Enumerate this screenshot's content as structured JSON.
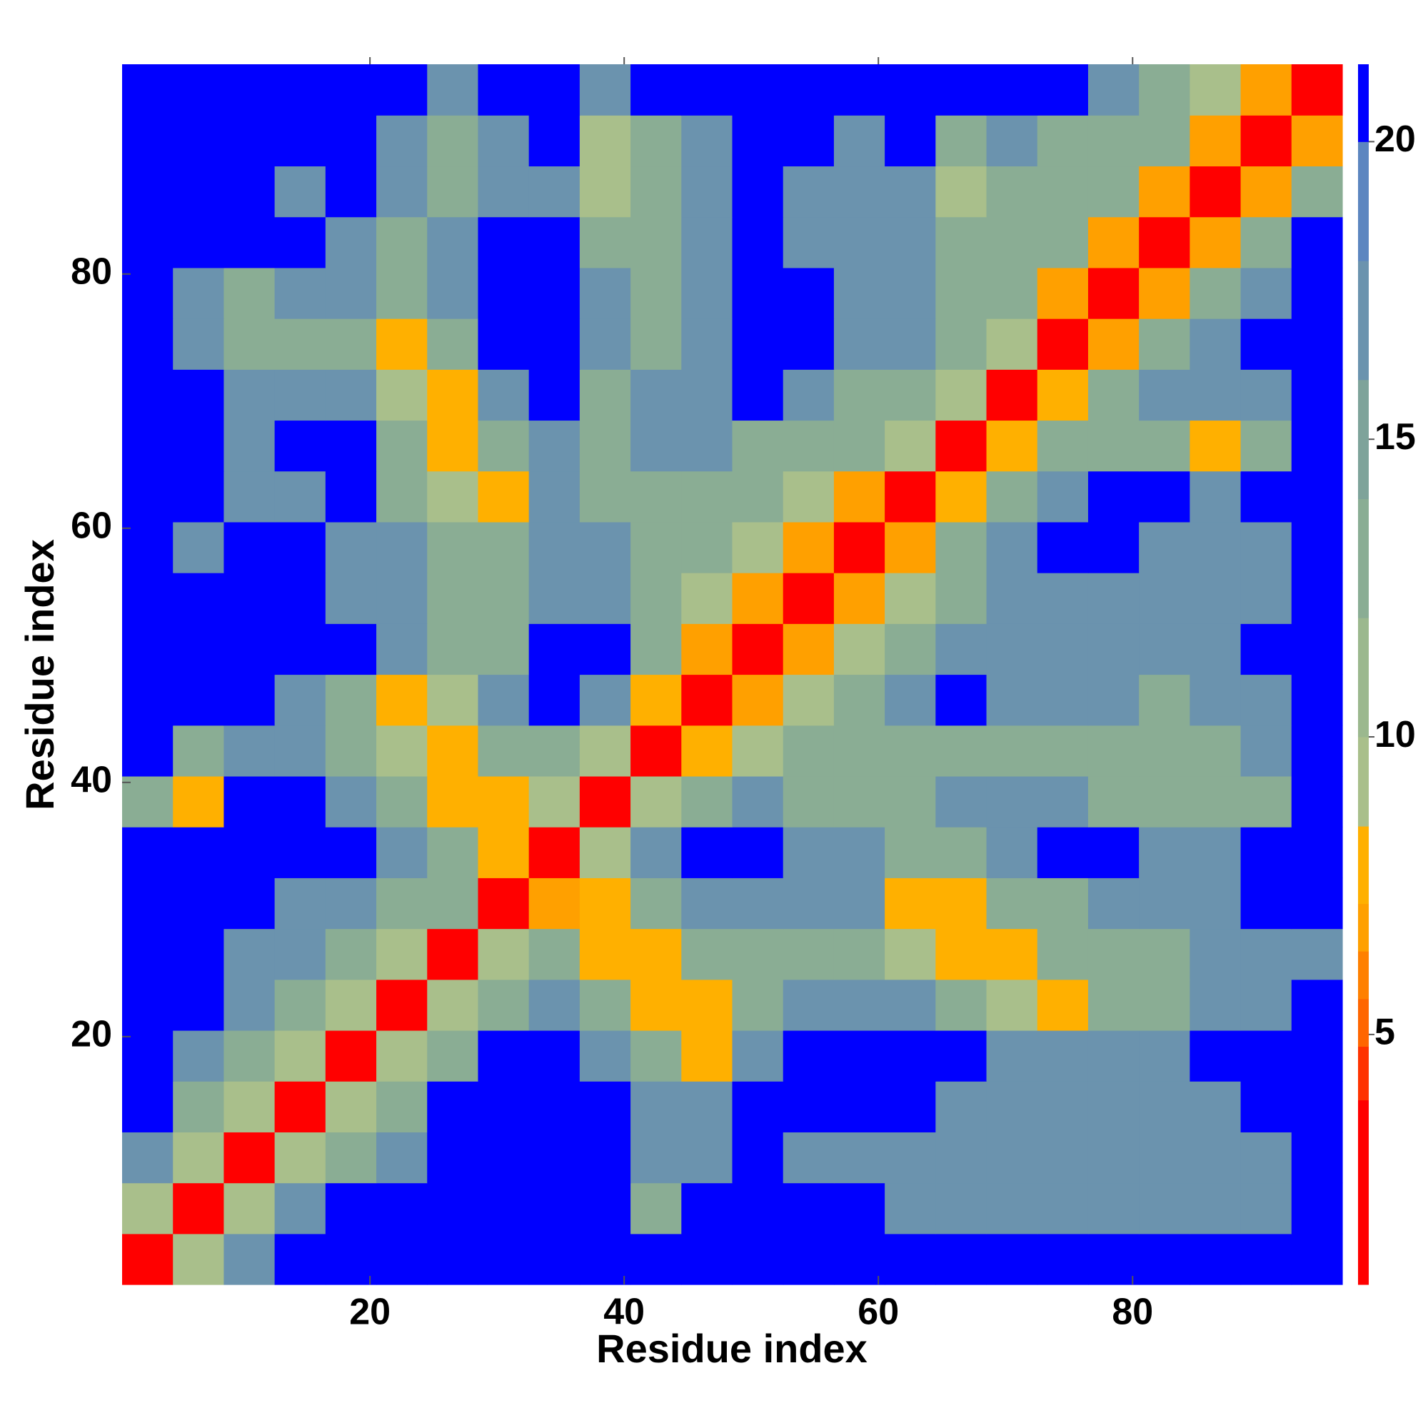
{
  "chart_data": {
    "type": "heatmap",
    "xlabel": "Residue index",
    "ylabel": "Residue index",
    "xbins": [
      0.5,
      4.5,
      8.5,
      12.5,
      16.5,
      20.5,
      24.5,
      28.5,
      32.5,
      36.5,
      40.5,
      44.5,
      48.5,
      52.5,
      56.5,
      60.5,
      64.5,
      68.5,
      72.5,
      76.5,
      80.5,
      84.5,
      88.5,
      92.5,
      96.5
    ],
    "ybins": [
      0.5,
      4.5,
      8.5,
      12.5,
      16.5,
      20.5,
      24.5,
      28.5,
      32.5,
      36.5,
      40.5,
      44.5,
      48.5,
      52.5,
      56.5,
      60.5,
      64.5,
      68.5,
      72.5,
      76.5,
      80.5,
      84.5,
      88.5,
      92.5,
      96.5
    ],
    "xlim": [
      0.5,
      96.5
    ],
    "ylim": [
      0.5,
      96.5
    ],
    "xticks": [
      20,
      40,
      60,
      80
    ],
    "yticks": [
      20,
      40,
      60,
      80
    ],
    "values": [
      [
        3,
        10,
        17,
        21,
        21,
        21,
        21,
        21,
        21,
        21,
        21,
        21,
        21,
        21,
        21,
        21,
        21,
        21,
        21,
        21,
        21,
        21,
        21,
        21
      ],
      [
        10,
        3,
        10,
        17,
        21,
        21,
        21,
        21,
        21,
        21,
        14,
        21,
        21,
        21,
        21,
        17,
        17,
        17,
        17,
        17,
        17,
        17,
        17,
        21
      ],
      [
        17,
        10,
        3,
        10,
        14,
        17,
        21,
        21,
        21,
        21,
        17,
        17,
        21,
        17,
        17,
        17,
        17,
        17,
        17,
        17,
        17,
        17,
        17,
        21
      ],
      [
        21,
        14,
        10,
        3,
        10,
        14,
        21,
        21,
        21,
        21,
        17,
        17,
        21,
        21,
        21,
        21,
        17,
        17,
        17,
        17,
        17,
        17,
        21,
        21
      ],
      [
        21,
        17,
        14,
        10,
        3,
        10,
        14,
        21,
        21,
        17,
        14,
        8,
        17,
        21,
        21,
        21,
        21,
        17,
        17,
        17,
        17,
        21,
        21,
        21
      ],
      [
        21,
        21,
        17,
        14,
        10,
        3,
        10,
        14,
        17,
        14,
        8,
        8,
        14,
        17,
        17,
        17,
        14,
        10,
        8,
        14,
        14,
        17,
        17,
        21
      ],
      [
        21,
        21,
        17,
        17,
        14,
        10,
        3,
        10,
        14,
        8,
        8,
        14,
        14,
        14,
        14,
        10,
        8,
        8,
        14,
        14,
        14,
        17,
        17,
        17
      ],
      [
        21,
        21,
        21,
        17,
        17,
        14,
        14,
        3,
        7,
        8,
        14,
        17,
        17,
        17,
        17,
        8,
        8,
        14,
        14,
        17,
        17,
        17,
        21,
        21
      ],
      [
        21,
        21,
        21,
        21,
        21,
        17,
        14,
        8,
        3,
        10,
        17,
        21,
        21,
        17,
        17,
        14,
        14,
        17,
        21,
        21,
        17,
        17,
        21,
        21
      ],
      [
        14,
        8,
        21,
        21,
        17,
        14,
        8,
        8,
        10,
        3,
        10,
        14,
        17,
        14,
        14,
        14,
        17,
        17,
        17,
        14,
        14,
        14,
        14,
        21
      ],
      [
        21,
        14,
        17,
        17,
        14,
        10,
        8,
        14,
        14,
        10,
        3,
        8,
        10,
        14,
        14,
        14,
        14,
        14,
        14,
        14,
        14,
        14,
        17,
        21
      ],
      [
        21,
        21,
        21,
        17,
        14,
        8,
        10,
        17,
        21,
        17,
        8,
        3,
        7,
        10,
        14,
        17,
        21,
        17,
        17,
        17,
        14,
        17,
        17,
        21
      ],
      [
        21,
        21,
        21,
        21,
        21,
        17,
        14,
        14,
        21,
        21,
        14,
        7,
        3,
        7,
        10,
        14,
        17,
        17,
        17,
        17,
        17,
        17,
        21,
        21
      ],
      [
        21,
        21,
        21,
        21,
        17,
        17,
        14,
        14,
        17,
        17,
        14,
        10,
        7,
        3,
        7,
        10,
        14,
        17,
        17,
        17,
        17,
        17,
        17,
        21
      ],
      [
        21,
        17,
        21,
        21,
        17,
        17,
        14,
        14,
        17,
        17,
        14,
        14,
        10,
        7,
        3,
        7,
        14,
        17,
        21,
        21,
        17,
        17,
        17,
        21
      ],
      [
        21,
        21,
        17,
        17,
        21,
        14,
        10,
        8,
        17,
        14,
        14,
        14,
        14,
        10,
        7,
        3,
        8,
        14,
        17,
        21,
        21,
        17,
        21,
        21
      ],
      [
        21,
        21,
        17,
        21,
        21,
        14,
        8,
        14,
        17,
        14,
        17,
        17,
        14,
        14,
        14,
        10,
        3,
        8,
        14,
        14,
        14,
        8,
        14,
        21
      ],
      [
        21,
        21,
        17,
        17,
        17,
        10,
        8,
        17,
        21,
        14,
        17,
        17,
        21,
        17,
        14,
        14,
        10,
        3,
        8,
        14,
        17,
        17,
        17,
        21
      ],
      [
        21,
        17,
        14,
        14,
        14,
        8,
        14,
        21,
        21,
        17,
        14,
        17,
        21,
        21,
        17,
        17,
        14,
        10,
        3,
        7,
        14,
        17,
        21,
        21
      ],
      [
        21,
        17,
        14,
        17,
        17,
        14,
        17,
        21,
        21,
        17,
        14,
        17,
        21,
        21,
        17,
        17,
        14,
        14,
        7,
        3,
        7,
        14,
        17,
        21
      ],
      [
        21,
        21,
        21,
        21,
        17,
        14,
        17,
        21,
        21,
        14,
        14,
        17,
        21,
        17,
        17,
        17,
        14,
        14,
        14,
        7,
        3,
        7,
        14,
        21
      ],
      [
        21,
        21,
        21,
        17,
        21,
        17,
        14,
        17,
        17,
        10,
        14,
        17,
        21,
        17,
        17,
        17,
        10,
        14,
        14,
        14,
        7,
        3,
        7,
        14
      ],
      [
        21,
        21,
        21,
        21,
        21,
        17,
        14,
        17,
        21,
        10,
        14,
        17,
        21,
        21,
        17,
        21,
        14,
        17,
        14,
        14,
        14,
        7,
        3,
        7
      ],
      [
        21,
        21,
        21,
        21,
        21,
        21,
        17,
        21,
        21,
        17,
        21,
        21,
        21,
        21,
        21,
        21,
        21,
        21,
        21,
        17,
        14,
        10,
        7,
        3
      ]
    ],
    "colorbar": {
      "bins": [
        0.8,
        3.9,
        4.8,
        5.6,
        6.4,
        7.2,
        8.5,
        10,
        12,
        14,
        16,
        18,
        20,
        21.3
      ],
      "colors": [
        "#ff0000",
        "#ff3300",
        "#ff6600",
        "#ff8000",
        "#ffa000",
        "#ffb000",
        "#a9bf8b",
        "#9bb88e",
        "#8aad94",
        "#7ea39a",
        "#6b93ae",
        "#5c86c0",
        "#0000ff"
      ],
      "ticks": [
        5,
        10,
        15,
        20
      ]
    }
  }
}
